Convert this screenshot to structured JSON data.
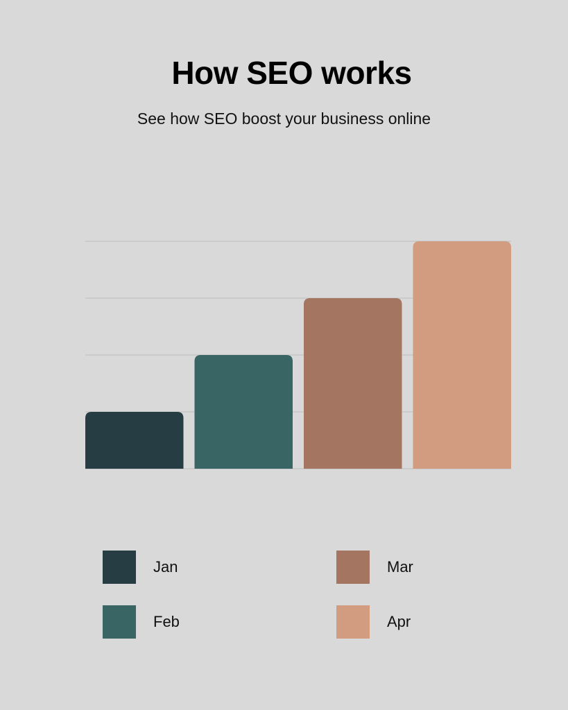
{
  "chart_data": {
    "type": "bar",
    "title": "How SEO works",
    "subtitle": "See how SEO boost your business online",
    "categories": [
      "Jan",
      "Feb",
      "Mar",
      "Apr"
    ],
    "values": [
      1,
      2,
      3,
      4
    ],
    "colors": [
      "#263e43",
      "#396565",
      "#a47661",
      "#d19c80"
    ],
    "ylim": [
      0,
      4
    ],
    "grid": true,
    "legend": [
      {
        "label": "Jan",
        "color": "#263e43"
      },
      {
        "label": "Feb",
        "color": "#396565"
      },
      {
        "label": "Mar",
        "color": "#a47661"
      },
      {
        "label": "Apr",
        "color": "#d19c80"
      }
    ],
    "legend_placement": "bottom"
  }
}
